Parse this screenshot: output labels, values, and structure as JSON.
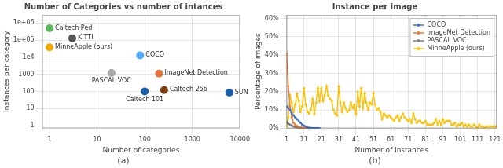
{
  "chart_data": [
    {
      "type": "scatter",
      "title": "Number of Categories vs number of intances",
      "subtitle": "(a)",
      "xlabel": "Number of categories",
      "ylabel": "Instances per category",
      "log": true,
      "marker": "circle",
      "x": [
        1,
        3,
        1,
        20,
        80,
        200,
        100,
        256,
        6000
      ],
      "values": [
        500000,
        130000,
        38000,
        1200,
        13000,
        1100,
        100,
        120,
        85
      ],
      "colors": [
        "#5cb85c",
        "#555555",
        "#f0a800",
        "#aaaaaa",
        "#4da6ff",
        "#e8763a",
        "#1a5fad",
        "#7b3f10",
        "#1a5fad"
      ],
      "annotations": [
        {
          "text": "Caltech Ped",
          "x": 1,
          "y": 500000
        },
        {
          "text": "KITTI",
          "x": 3,
          "y": 130000
        },
        {
          "text": "MinneApple (ours)",
          "x": 1,
          "y": 38000
        },
        {
          "text": "PASCAL VOC",
          "x": 20,
          "y": 1200
        },
        {
          "text": "COCO",
          "x": 80,
          "y": 13000
        },
        {
          "text": "ImageNet Detection",
          "x": 200,
          "y": 1100
        },
        {
          "text": "Caltech 101",
          "x": 100,
          "y": 100
        },
        {
          "text": "Caltech 256",
          "x": 256,
          "y": 120
        },
        {
          "text": "SUN",
          "x": 6000,
          "y": 85
        }
      ],
      "xlim": [
        0.7,
        10000
      ],
      "ylim": [
        0.7,
        3000000
      ],
      "xticks": [
        1,
        10,
        100,
        1000,
        10000
      ],
      "yticks": [
        1,
        10,
        100,
        1000,
        {
          "value": 10000,
          "label": "1e4"
        },
        {
          "value": 100000,
          "label": "1e+05"
        },
        {
          "value": 1000000,
          "label": "1e+06"
        }
      ],
      "grid": true
    },
    {
      "type": "line",
      "title": "Instance per image",
      "subtitle": "(b)",
      "xlabel": "Number of instances",
      "ylabel": "Percentage of images",
      "marker": "circle",
      "legend": "upper right",
      "series": [
        {
          "name": "COCO",
          "color": "#4472c4",
          "x": [
            1,
            2,
            3,
            4,
            5,
            6,
            7,
            8,
            9,
            10,
            11,
            12,
            13,
            14,
            15,
            16,
            17,
            18,
            19,
            20
          ],
          "values": [
            12,
            11,
            10,
            8,
            7,
            6,
            5,
            4,
            3,
            2,
            1.5,
            1,
            0.5,
            0.3,
            0.2,
            0.1,
            0.1,
            0.05,
            0.02,
            0.01
          ]
        },
        {
          "name": "ImageNet Detection",
          "color": "#ed7d31",
          "x": [
            1,
            2,
            3,
            4,
            5,
            6,
            7,
            8,
            9,
            10,
            11,
            12,
            13
          ],
          "values": [
            41,
            23,
            12,
            6,
            3,
            2,
            1.2,
            0.8,
            0.5,
            0.3,
            0.15,
            0.08,
            0.02
          ]
        },
        {
          "name": "PASCAL VOC",
          "color": "#7f7f7f",
          "x": [
            1,
            2,
            3,
            4,
            5,
            6,
            7,
            8,
            9,
            10,
            11,
            12,
            13,
            14,
            15,
            16,
            17,
            18
          ],
          "values": [
            3.5,
            2.5,
            2,
            1.5,
            1,
            0.7,
            0.5,
            0.3,
            0.2,
            0.1,
            0.08,
            0.05,
            0.03,
            0.02,
            0.01,
            0.01,
            0.005,
            0.002
          ]
        },
        {
          "name": "MinneApple (ours)",
          "color": "#ffc000",
          "x": [
            1,
            2,
            3,
            4,
            5,
            6,
            7,
            8,
            9,
            10,
            11,
            12,
            13,
            14,
            15,
            16,
            17,
            18,
            19,
            20,
            21,
            22,
            23,
            24,
            25,
            26,
            27,
            28,
            29,
            30,
            31,
            32,
            33,
            34,
            35,
            36,
            37,
            38,
            39,
            40,
            41,
            42,
            43,
            44,
            45,
            46,
            47,
            48,
            49,
            50,
            51,
            52,
            53,
            54,
            55,
            56,
            57,
            58,
            59,
            60,
            61,
            62,
            63,
            64,
            65,
            66,
            67,
            68,
            69,
            70,
            71,
            72,
            73,
            74,
            75,
            76,
            77,
            78,
            79,
            80,
            81,
            82,
            83,
            84,
            85,
            86,
            87,
            88,
            89,
            90,
            91,
            92,
            93,
            94,
            95,
            96,
            97,
            98,
            99,
            100,
            101,
            102,
            103,
            104,
            105,
            106,
            107,
            108,
            109,
            110,
            111,
            112,
            113,
            114,
            115,
            116,
            117,
            118,
            119,
            120,
            121,
            122
          ],
          "values": [
            1,
            6,
            18,
            14,
            9,
            13,
            19,
            15,
            9,
            12,
            22,
            13,
            9,
            8,
            10,
            16,
            8,
            14,
            22,
            15,
            22,
            15,
            18,
            23,
            18,
            16,
            15,
            10,
            8,
            7,
            23,
            14,
            9,
            14,
            11,
            9,
            10,
            14,
            11,
            13,
            8,
            20,
            12,
            22,
            11,
            19,
            14,
            10,
            14,
            13,
            19,
            13,
            10,
            11,
            9,
            5,
            8,
            7,
            6,
            7,
            6,
            5,
            4,
            6,
            7,
            4,
            6,
            8,
            6,
            5,
            4,
            5,
            3,
            8,
            5,
            3,
            4,
            4,
            3,
            3,
            4,
            2,
            2,
            2,
            2,
            3,
            5,
            2,
            4,
            2,
            5,
            3,
            4,
            4,
            4,
            2,
            2,
            3,
            1,
            2,
            2,
            3,
            1,
            2,
            1,
            2,
            1,
            1,
            2,
            1,
            0,
            2,
            1,
            1,
            0,
            1,
            1,
            1,
            1,
            1,
            1,
            1
          ]
        }
      ],
      "xlim": [
        1,
        122
      ],
      "ylim": [
        0,
        62
      ],
      "xticks": [
        1,
        11,
        21,
        31,
        41,
        51,
        61,
        71,
        81,
        91,
        101,
        111,
        121
      ],
      "yticks": [
        {
          "value": 0,
          "label": "0%"
        },
        {
          "value": 10,
          "label": "10%"
        },
        {
          "value": 20,
          "label": "20%"
        },
        {
          "value": 30,
          "label": "30%"
        },
        {
          "value": 40,
          "label": "40%"
        },
        {
          "value": 50,
          "label": "50%"
        },
        {
          "value": 60,
          "label": "60%"
        }
      ],
      "grid": true
    }
  ]
}
